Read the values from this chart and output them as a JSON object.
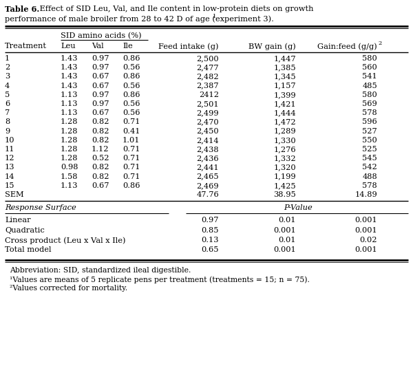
{
  "title_bold": "Table 6.",
  "title_rest": " Effect of SID Leu, Val, and Ile content in low-protein diets on growth",
  "title_line2": "performance of male broiler from 28 to 42 D of age (experiment 3).",
  "title_sup": "1",
  "subheader": "SID amino acids (%)",
  "col_headers": [
    "Treatment",
    "Leu",
    "Val",
    "Ile",
    "Feed intake (g)",
    "BW gain (g)",
    "Gain:feed (g/g)"
  ],
  "gain_feed_sup": "2",
  "data_rows": [
    [
      "1",
      "1.43",
      "0.97",
      "0.86",
      "2,500",
      "1,447",
      "580"
    ],
    [
      "2",
      "1.43",
      "0.97",
      "0.56",
      "2,477",
      "1,385",
      "560"
    ],
    [
      "3",
      "1.43",
      "0.67",
      "0.86",
      "2,482",
      "1,345",
      "541"
    ],
    [
      "4",
      "1.43",
      "0.67",
      "0.56",
      "2,387",
      "1,157",
      "485"
    ],
    [
      "5",
      "1.13",
      "0.97",
      "0.86",
      "2412",
      "1,399",
      "580"
    ],
    [
      "6",
      "1.13",
      "0.97",
      "0.56",
      "2,501",
      "1,421",
      "569"
    ],
    [
      "7",
      "1.13",
      "0.67",
      "0.56",
      "2,499",
      "1,444",
      "578"
    ],
    [
      "8",
      "1.28",
      "0.82",
      "0.71",
      "2,470",
      "1,472",
      "596"
    ],
    [
      "9",
      "1.28",
      "0.82",
      "0.41",
      "2,450",
      "1,289",
      "527"
    ],
    [
      "10",
      "1.28",
      "0.82",
      "1.01",
      "2,414",
      "1,330",
      "550"
    ],
    [
      "11",
      "1.28",
      "1.12",
      "0.71",
      "2,438",
      "1,276",
      "525"
    ],
    [
      "12",
      "1.28",
      "0.52",
      "0.71",
      "2,436",
      "1,332",
      "545"
    ],
    [
      "13",
      "0.98",
      "0.82",
      "0.71",
      "2,441",
      "1,320",
      "542"
    ],
    [
      "14",
      "1.58",
      "0.82",
      "0.71",
      "2,465",
      "1,199",
      "488"
    ],
    [
      "15",
      "1.13",
      "0.67",
      "0.86",
      "2,469",
      "1,425",
      "578"
    ]
  ],
  "sem_row": [
    "SEM",
    "",
    "",
    "",
    "47.76",
    "38.95",
    "14.89"
  ],
  "response_label": "Response Surface",
  "pvalue_label": "P-Value",
  "response_rows": [
    [
      "Linear",
      "0.97",
      "0.01",
      "0.001"
    ],
    [
      "Quadratic",
      "0.85",
      "0.001",
      "0.001"
    ],
    [
      "Cross product (Leu x Val x Ile)",
      "0.13",
      "0.01",
      "0.02"
    ],
    [
      "Total model",
      "0.65",
      "0.001",
      "0.001"
    ]
  ],
  "footnotes": [
    "Abbreviation: SID, standardized ileal digestible.",
    "¹Values are means of 5 replicate pens per treatment (treatments = 15; n = 75).",
    "²Values corrected for mortality."
  ],
  "bg_color": "#ffffff",
  "text_color": "#000000"
}
